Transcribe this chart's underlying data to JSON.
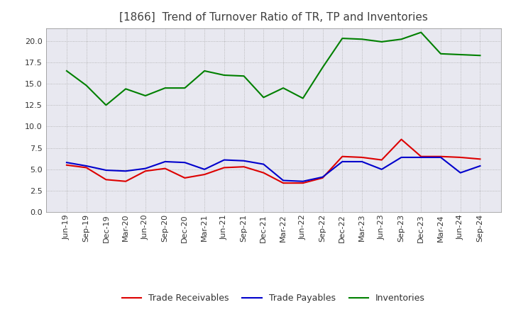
{
  "title": "[1866]  Trend of Turnover Ratio of TR, TP and Inventories",
  "x_labels": [
    "Jun-19",
    "Sep-19",
    "Dec-19",
    "Mar-20",
    "Jun-20",
    "Sep-20",
    "Dec-20",
    "Mar-21",
    "Jun-21",
    "Sep-21",
    "Dec-21",
    "Mar-22",
    "Jun-22",
    "Sep-22",
    "Dec-22",
    "Mar-23",
    "Jun-23",
    "Sep-23",
    "Dec-23",
    "Mar-24",
    "Jun-24",
    "Sep-24"
  ],
  "trade_receivables": [
    5.5,
    5.2,
    3.8,
    3.6,
    4.8,
    5.1,
    4.0,
    4.4,
    5.2,
    5.3,
    4.6,
    3.4,
    3.4,
    4.0,
    6.5,
    6.4,
    6.1,
    8.5,
    6.5,
    6.5,
    6.4,
    6.2
  ],
  "trade_payables": [
    5.8,
    5.4,
    4.9,
    4.8,
    5.1,
    5.9,
    5.8,
    5.0,
    6.1,
    6.0,
    5.6,
    3.7,
    3.6,
    4.1,
    5.9,
    5.9,
    5.0,
    6.4,
    6.4,
    6.4,
    4.6,
    5.4
  ],
  "inventories": [
    16.5,
    14.8,
    12.5,
    14.4,
    13.6,
    14.5,
    14.5,
    16.5,
    16.0,
    15.9,
    13.4,
    14.5,
    13.3,
    16.9,
    20.3,
    20.2,
    19.9,
    20.2,
    21.0,
    18.5,
    18.4,
    18.3
  ],
  "color_tr": "#dd0000",
  "color_tp": "#0000cc",
  "color_inv": "#008000",
  "ylim": [
    0,
    21.5
  ],
  "yticks": [
    0.0,
    2.5,
    5.0,
    7.5,
    10.0,
    12.5,
    15.0,
    17.5,
    20.0
  ],
  "bg_color": "#e8e8f0",
  "fig_bg": "#ffffff",
  "legend_labels": [
    "Trade Receivables",
    "Trade Payables",
    "Inventories"
  ],
  "title_color": "#404040",
  "title_fontsize": 11,
  "tick_fontsize": 8,
  "line_width": 1.5
}
